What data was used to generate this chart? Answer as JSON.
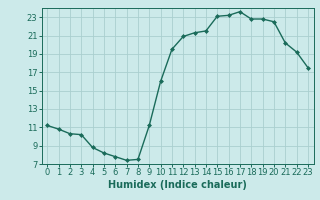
{
  "x": [
    0,
    1,
    2,
    3,
    4,
    5,
    6,
    7,
    8,
    9,
    10,
    11,
    12,
    13,
    14,
    15,
    16,
    17,
    18,
    19,
    20,
    21,
    22,
    23
  ],
  "y": [
    11.2,
    10.8,
    10.3,
    10.2,
    8.8,
    8.2,
    7.8,
    7.4,
    7.5,
    11.2,
    16.0,
    19.5,
    20.9,
    21.3,
    21.5,
    23.1,
    23.2,
    23.6,
    22.8,
    22.8,
    22.5,
    20.2,
    19.2,
    17.5
  ],
  "line_color": "#1a6b5a",
  "marker": "D",
  "marker_size": 2,
  "bg_color": "#cceaea",
  "grid_color": "#aacfcf",
  "xlabel": "Humidex (Indice chaleur)",
  "xlim": [
    -0.5,
    23.5
  ],
  "ylim": [
    7,
    24
  ],
  "yticks": [
    7,
    9,
    11,
    13,
    15,
    17,
    19,
    21,
    23
  ],
  "xticks": [
    0,
    1,
    2,
    3,
    4,
    5,
    6,
    7,
    8,
    9,
    10,
    11,
    12,
    13,
    14,
    15,
    16,
    17,
    18,
    19,
    20,
    21,
    22,
    23
  ],
  "xlabel_fontsize": 7,
  "tick_fontsize": 6,
  "linewidth": 1.0
}
